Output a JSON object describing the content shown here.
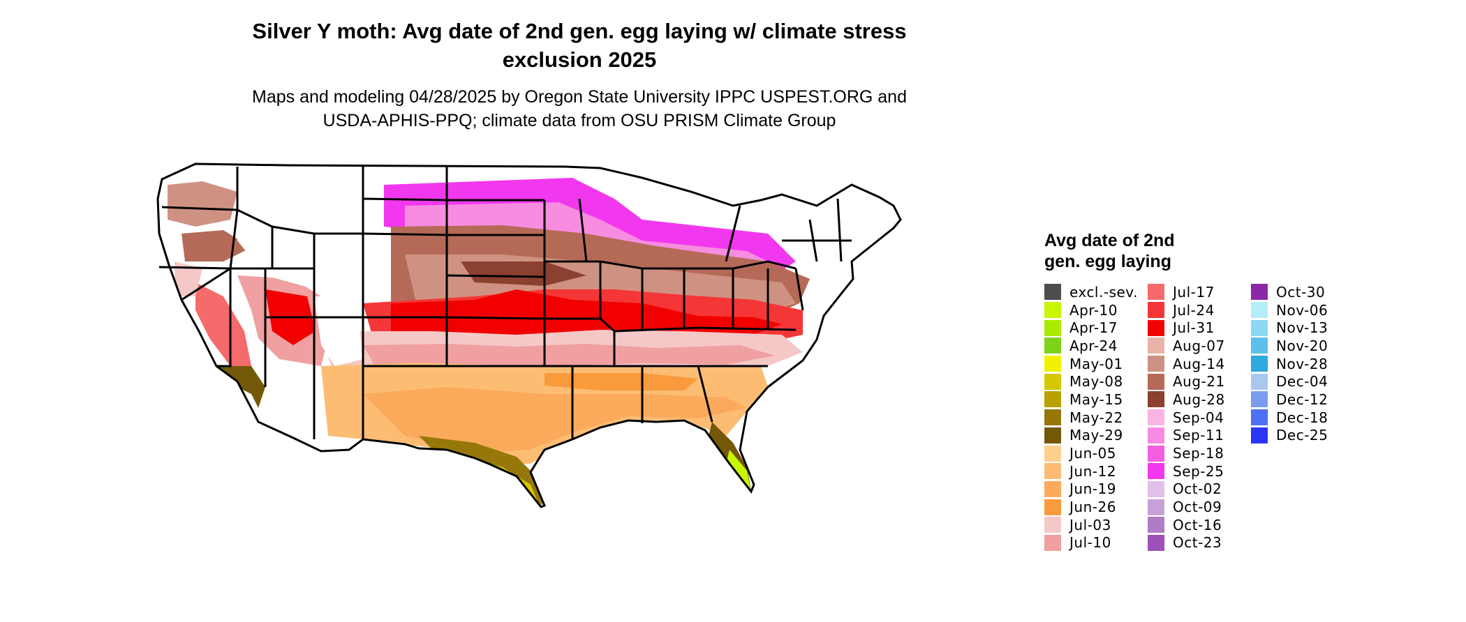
{
  "title_line1": "Silver Y moth: Avg date of 2nd gen. egg laying w/ climate stress",
  "title_line2": "exclusion 2025",
  "subtitle_line1": "Maps and modeling 04/28/2025 by Oregon State University IPPC USPEST.ORG and",
  "subtitle_line2": "USDA-APHIS-PPQ; climate data from OSU PRISM Climate Group",
  "legend": {
    "title_line1": "Avg date of 2nd",
    "title_line2": "gen. egg laying",
    "columns": [
      [
        {
          "label": "excl.-sev.",
          "color": "#4d4d4d"
        },
        {
          "label": "Apr-10",
          "color": "#c8f500"
        },
        {
          "label": "Apr-17",
          "color": "#a9ea00"
        },
        {
          "label": "Apr-24",
          "color": "#7fd21a"
        },
        {
          "label": "May-01",
          "color": "#f2f200"
        },
        {
          "label": "May-08",
          "color": "#d6c800"
        },
        {
          "label": "May-15",
          "color": "#b8a000"
        },
        {
          "label": "May-22",
          "color": "#96780a"
        },
        {
          "label": "May-29",
          "color": "#735808"
        },
        {
          "label": "Jun-05",
          "color": "#fdd090"
        },
        {
          "label": "Jun-12",
          "color": "#fcbd73"
        },
        {
          "label": "Jun-19",
          "color": "#fbaa5c"
        },
        {
          "label": "Jun-26",
          "color": "#f99a3d"
        },
        {
          "label": "Jul-03",
          "color": "#f5c8c8"
        },
        {
          "label": "Jul-10",
          "color": "#f0a0a0"
        }
      ],
      [
        {
          "label": "Jul-17",
          "color": "#f56b6b"
        },
        {
          "label": "Jul-24",
          "color": "#f53636"
        },
        {
          "label": "Jul-31",
          "color": "#f20000"
        },
        {
          "label": "Aug-07",
          "color": "#e8b4a8"
        },
        {
          "label": "Aug-14",
          "color": "#cf9282"
        },
        {
          "label": "Aug-21",
          "color": "#b56a58"
        },
        {
          "label": "Aug-28",
          "color": "#8c4030"
        },
        {
          "label": "Sep-04",
          "color": "#f9b4e4"
        },
        {
          "label": "Sep-11",
          "color": "#f78ce0"
        },
        {
          "label": "Sep-18",
          "color": "#f55ee0"
        },
        {
          "label": "Sep-25",
          "color": "#f238ee"
        },
        {
          "label": "Oct-02",
          "color": "#e0c0e8"
        },
        {
          "label": "Oct-09",
          "color": "#c8a0d8"
        },
        {
          "label": "Oct-16",
          "color": "#b07cc8"
        },
        {
          "label": "Oct-23",
          "color": "#9c50b8"
        }
      ],
      [
        {
          "label": "Oct-30",
          "color": "#8a28a8"
        },
        {
          "label": "Nov-06",
          "color": "#b4ecf8"
        },
        {
          "label": "Nov-13",
          "color": "#8cd8f2"
        },
        {
          "label": "Nov-20",
          "color": "#5cc0ea"
        },
        {
          "label": "Nov-28",
          "color": "#30a8e0"
        },
        {
          "label": "Dec-04",
          "color": "#a8c8ee"
        },
        {
          "label": "Dec-12",
          "color": "#7c9cf0"
        },
        {
          "label": "Dec-18",
          "color": "#5070f2"
        },
        {
          "label": "Dec-25",
          "color": "#2a36f5"
        }
      ]
    ]
  }
}
